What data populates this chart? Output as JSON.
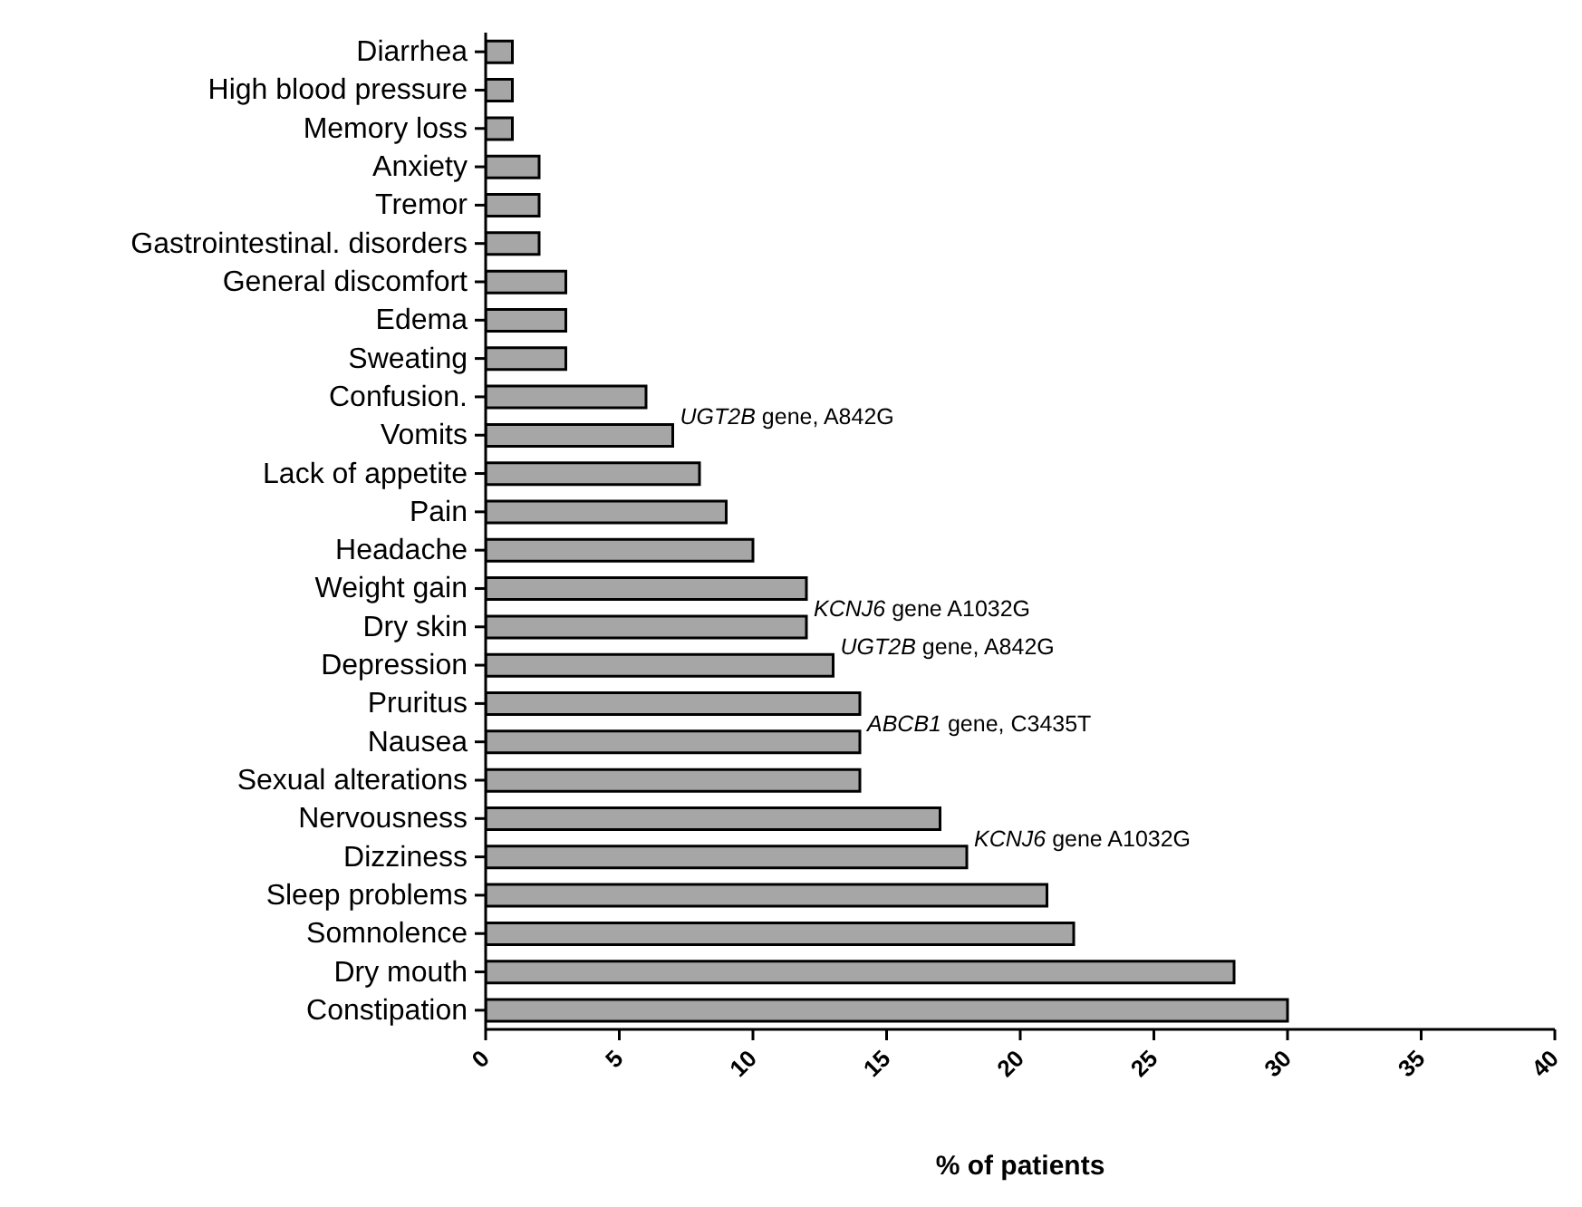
{
  "chart_data": {
    "type": "bar",
    "orientation": "horizontal",
    "xlabel": "% of patients",
    "categories": [
      "Diarrhea",
      "High blood pressure",
      "Memory loss",
      "Anxiety",
      "Tremor",
      "Gastrointestinal. disorders",
      "General discomfort",
      "Edema",
      "Sweating",
      "Confusion.",
      "Vomits",
      "Lack of appetite",
      "Pain",
      "Headache",
      "Weight gain",
      "Dry skin",
      "Depression",
      "Pruritus",
      "Nausea",
      "Sexual alterations",
      "Nervousness",
      "Dizziness",
      "Sleep problems",
      "Somnolence",
      "Dry mouth",
      "Constipation"
    ],
    "values": [
      1,
      1,
      1,
      2,
      2,
      2,
      3,
      3,
      3,
      6,
      7,
      8,
      9,
      10,
      12,
      12,
      13,
      14,
      14,
      14,
      17,
      18,
      21,
      22,
      28,
      30
    ],
    "color": "#a6a6a6",
    "xlim": [
      0,
      40
    ],
    "xticks": [
      0,
      5,
      10,
      15,
      20,
      25,
      30,
      35,
      40
    ],
    "grid": false,
    "legend": false,
    "annotations": [
      {
        "text": "UGT2B gene, A842G",
        "x": 7,
        "y": "Vomits"
      },
      {
        "text": "KCNJ6 gene A1032G",
        "x": 12,
        "y": "Dry skin"
      },
      {
        "text": "UGT2B gene, A842G",
        "x": 13,
        "y": "Depression"
      },
      {
        "text": "ABCB1 gene, C3435T",
        "x": 14,
        "y": "Nausea"
      },
      {
        "text": "KCNJ6 gene A1032G",
        "x": 18,
        "y": "Dizziness"
      }
    ]
  }
}
